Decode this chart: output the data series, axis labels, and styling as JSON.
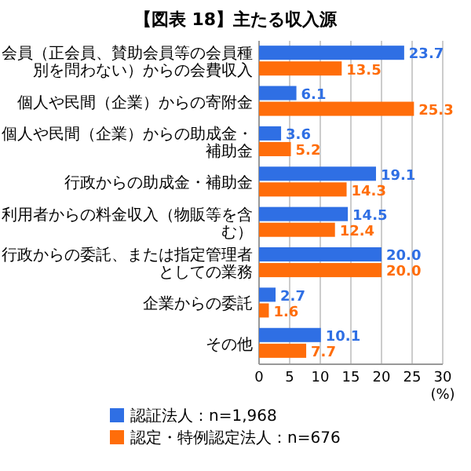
{
  "chart_data": {
    "type": "bar",
    "orientation": "horizontal",
    "title": "【図表 18】主たる収入源",
    "categories": [
      "会員（正会員、賛助会員等の会員種別を問わない）からの会費収入",
      "個人や民間（企業）からの寄附金",
      "個人や民間（企業）からの助成金・補助金",
      "行政からの助成金・補助金",
      "利用者からの料金収入（物販等を含む）",
      "行政からの委託、または指定管理者としての業務",
      "企業からの委託",
      "その他"
    ],
    "series": [
      {
        "name": "認証法人：n=1,968",
        "color": "#2f6fe4",
        "values": [
          23.7,
          6.1,
          3.6,
          19.1,
          14.5,
          20.0,
          2.7,
          10.1
        ],
        "value_labels": [
          "23.7",
          "6.1",
          "3.6",
          "19.1",
          "14.5",
          "20.0",
          "2.7",
          "10.1"
        ]
      },
      {
        "name": "認定・特例認定法人：n=676",
        "color": "#ff6d0a",
        "values": [
          13.5,
          25.3,
          5.2,
          14.3,
          12.4,
          20.0,
          1.6,
          7.7
        ],
        "value_labels": [
          "13.5",
          "25.3",
          "5.2",
          "14.3",
          "12.4",
          "20.0",
          "1.6",
          "7.7"
        ]
      }
    ],
    "xlim": [
      0,
      30
    ],
    "xticks": [
      0,
      5,
      10,
      15,
      20,
      25,
      30
    ],
    "xlabel": "(%)",
    "grid": "x",
    "legend": "bottom"
  }
}
